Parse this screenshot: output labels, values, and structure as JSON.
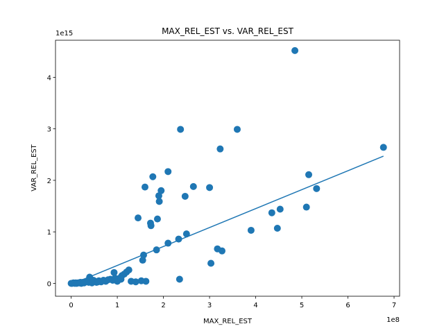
{
  "chart_data": {
    "type": "scatter",
    "title": "MAX_REL_EST vs. VAR_REL_EST",
    "xlabel": "MAX_REL_EST",
    "ylabel": "VAR_REL_EST",
    "x_offset_text": "1e8",
    "y_offset_text": "1e15",
    "xlim": [
      -0.34,
      7.12
    ],
    "ylim": [
      -0.25,
      4.72
    ],
    "x_ticks": [
      0,
      1,
      2,
      3,
      4,
      5,
      6,
      7
    ],
    "x_tick_labels": [
      "0",
      "1",
      "2",
      "3",
      "4",
      "5",
      "6",
      "7"
    ],
    "y_ticks": [
      0,
      1,
      2,
      3,
      4
    ],
    "y_tick_labels": [
      "0",
      "1",
      "2",
      "3",
      "4"
    ],
    "grid": false,
    "marker_color": "#1f77b4",
    "line_color": "#1f77b4",
    "trend_line": {
      "x": [
        0,
        6.77
      ],
      "y": [
        -0.02,
        2.47
      ]
    },
    "points": {
      "x": [
        4.85,
        2.37,
        3.6,
        6.77,
        3.23,
        2.1,
        5.15,
        1.77,
        1.6,
        2.65,
        3.0,
        1.95,
        1.9,
        1.91,
        5.32,
        2.47,
        1.45,
        4.53,
        5.1,
        4.35,
        1.87,
        1.72,
        1.73,
        4.47,
        3.9,
        2.5,
        2.33,
        2.1,
        1.85,
        3.17,
        3.27,
        1.57,
        1.55,
        3.03,
        1.25,
        1.2,
        0.93,
        1.15,
        1.1,
        1.05,
        0.85,
        0.8,
        0.7,
        0.6,
        0.5,
        0.42,
        0.35,
        0.3,
        0.25,
        0.2,
        0.15,
        0.1,
        0.05,
        0.02,
        0.0,
        0.08,
        0.12,
        0.18,
        0.22,
        0.28,
        0.38,
        0.45,
        0.55,
        0.65,
        0.75,
        0.9,
        1.0,
        1.3,
        1.4,
        1.52,
        1.62,
        2.35,
        0.4,
        0.48,
        0.58,
        0.95,
        1.08
      ],
      "y": [
        4.52,
        2.99,
        2.99,
        2.64,
        2.61,
        2.17,
        2.11,
        2.07,
        1.87,
        1.88,
        1.86,
        1.8,
        1.7,
        1.59,
        1.84,
        1.69,
        1.27,
        1.44,
        1.48,
        1.37,
        1.25,
        1.17,
        1.12,
        1.07,
        1.03,
        0.96,
        0.86,
        0.78,
        0.65,
        0.67,
        0.63,
        0.55,
        0.45,
        0.39,
        0.26,
        0.22,
        0.21,
        0.18,
        0.15,
        0.1,
        0.08,
        0.07,
        0.06,
        0.05,
        0.05,
        0.05,
        0.04,
        0.03,
        0.02,
        0.02,
        0.01,
        0.01,
        0.01,
        0.0,
        0.0,
        0.0,
        0.0,
        0.01,
        0.0,
        0.01,
        0.02,
        0.01,
        0.02,
        0.03,
        0.04,
        0.06,
        0.04,
        0.04,
        0.03,
        0.05,
        0.04,
        0.08,
        0.12,
        0.06,
        0.03,
        0.1,
        0.08
      ]
    }
  }
}
